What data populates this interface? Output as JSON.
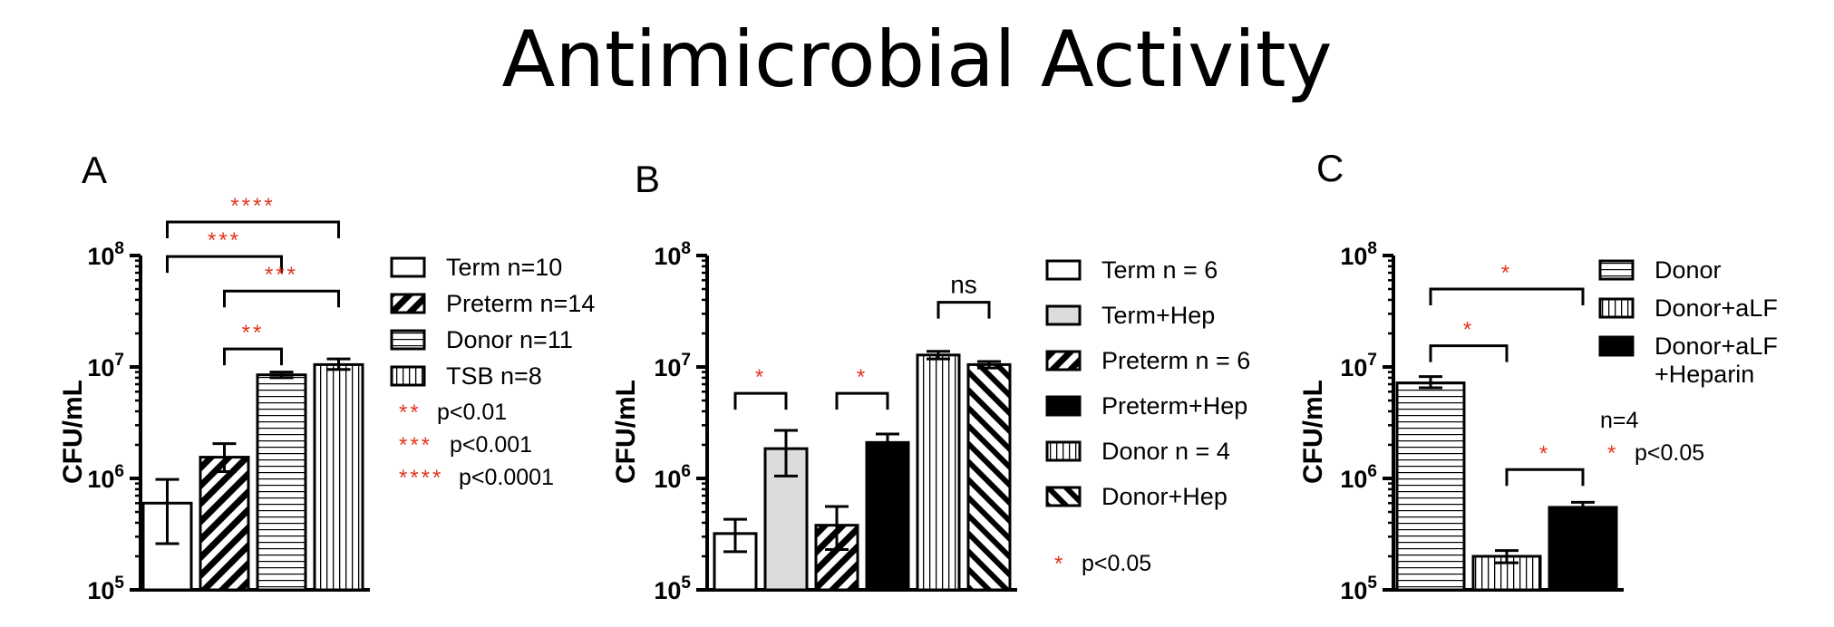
{
  "title": "Antimicrobial Activity",
  "colors": {
    "star": "#e2341d",
    "ink": "#000000",
    "light_gray": "#dcdcdc",
    "white": "#ffffff"
  },
  "chart_data": [
    {
      "panel": "A",
      "type": "bar",
      "yscale": "log",
      "ylabel": "CFU/mL",
      "yticks": [
        "10^8",
        "10^7",
        "10^6",
        "10^5"
      ],
      "ylim": [
        100000,
        100000000
      ],
      "categories": [
        "Term n=10",
        "Preterm n=14",
        "Donor n=11",
        "TSB n=8"
      ],
      "patterns": [
        "white",
        "diagonal",
        "horizontal",
        "vertical"
      ],
      "values": [
        600000,
        1550000,
        8500000,
        10500000
      ],
      "error_low": [
        260000,
        1150000,
        8000000,
        9500000
      ],
      "error_high": [
        980000,
        2050000,
        9000000,
        11800000
      ],
      "legend": [
        {
          "pattern": "white",
          "label": "Term n=10"
        },
        {
          "pattern": "diagonal",
          "label": "Preterm n=14"
        },
        {
          "pattern": "horizontal",
          "label": "Donor n=11"
        },
        {
          "pattern": "vertical",
          "label": "TSB n=8"
        }
      ],
      "significance": [
        {
          "from": 0,
          "to": 3,
          "level_value": 200000000,
          "stars": "****"
        },
        {
          "from": 0,
          "to": 2,
          "level_value": 98000000,
          "stars": "***"
        },
        {
          "from": 1,
          "to": 3,
          "level_value": 48000000,
          "stars": "***"
        },
        {
          "from": 1,
          "to": 2,
          "level_value": 14500000,
          "stars": "**"
        }
      ],
      "pvalue_key": [
        {
          "stars": "**",
          "text": "p<0.01"
        },
        {
          "stars": "***",
          "text": "p<0.001"
        },
        {
          "stars": "****",
          "text": "p<0.0001"
        }
      ]
    },
    {
      "panel": "B",
      "type": "bar",
      "yscale": "log",
      "ylabel": "CFU/mL",
      "yticks": [
        "10^8",
        "10^7",
        "10^6",
        "10^5"
      ],
      "ylim": [
        100000,
        100000000
      ],
      "categories": [
        "Term n = 6",
        "Term+Hep",
        "Preterm n = 6",
        "Preterm+Hep",
        "Donor n = 4",
        "Donor+Hep"
      ],
      "patterns": [
        "white",
        "gray",
        "diagonal",
        "black",
        "vertical",
        "diagonal-rev"
      ],
      "values": [
        320000,
        1850000,
        380000,
        2100000,
        12800000,
        10500000
      ],
      "error_low": [
        220000,
        1050000,
        230000,
        1750000,
        11800000,
        9800000
      ],
      "error_high": [
        430000,
        2700000,
        560000,
        2500000,
        13800000,
        11200000
      ],
      "legend": [
        {
          "pattern": "white",
          "label": "Term n = 6"
        },
        {
          "pattern": "gray",
          "label": "Term+Hep"
        },
        {
          "pattern": "diagonal",
          "label": "Preterm n = 6"
        },
        {
          "pattern": "black",
          "label": "Preterm+Hep"
        },
        {
          "pattern": "vertical",
          "label": "Donor n = 4"
        },
        {
          "pattern": "diagonal-rev",
          "label": "Donor+Hep"
        }
      ],
      "significance": [
        {
          "from": 0,
          "to": 1,
          "level_value": 5800000,
          "stars": "*"
        },
        {
          "from": 2,
          "to": 3,
          "level_value": 5800000,
          "stars": "*"
        },
        {
          "from": 4,
          "to": 5,
          "level_value": 38000000,
          "stars": "ns"
        }
      ],
      "pvalue_key": [
        {
          "stars": "*",
          "text": "p<0.05"
        }
      ]
    },
    {
      "panel": "C",
      "type": "bar",
      "yscale": "log",
      "ylabel": "CFU/mL",
      "yticks": [
        "10^8",
        "10^7",
        "10^6",
        "10^5"
      ],
      "ylim": [
        100000,
        100000000
      ],
      "categories": [
        "Donor",
        "Donor+aLF",
        "Donor+aLF +Heparin"
      ],
      "patterns": [
        "horizontal",
        "vertical",
        "black"
      ],
      "values": [
        7200000,
        200000,
        550000
      ],
      "error_low": [
        6500000,
        175000,
        510000
      ],
      "error_high": [
        8200000,
        225000,
        610000
      ],
      "legend": [
        {
          "pattern": "horizontal",
          "label": "Donor"
        },
        {
          "pattern": "vertical",
          "label": "Donor+aLF"
        },
        {
          "pattern": "black",
          "label": "Donor+aLF",
          "label2": "+Heparin"
        }
      ],
      "notes": [
        "n=4"
      ],
      "significance": [
        {
          "from": 0,
          "to": 2,
          "level_value": 50000000,
          "stars": "*"
        },
        {
          "from": 0,
          "to": 1,
          "level_value": 15500000,
          "stars": "*"
        },
        {
          "from": 1,
          "to": 2,
          "level_value": 1200000,
          "stars": "*"
        }
      ],
      "pvalue_key": [
        {
          "stars": "*",
          "text": "p<0.05"
        }
      ]
    }
  ]
}
